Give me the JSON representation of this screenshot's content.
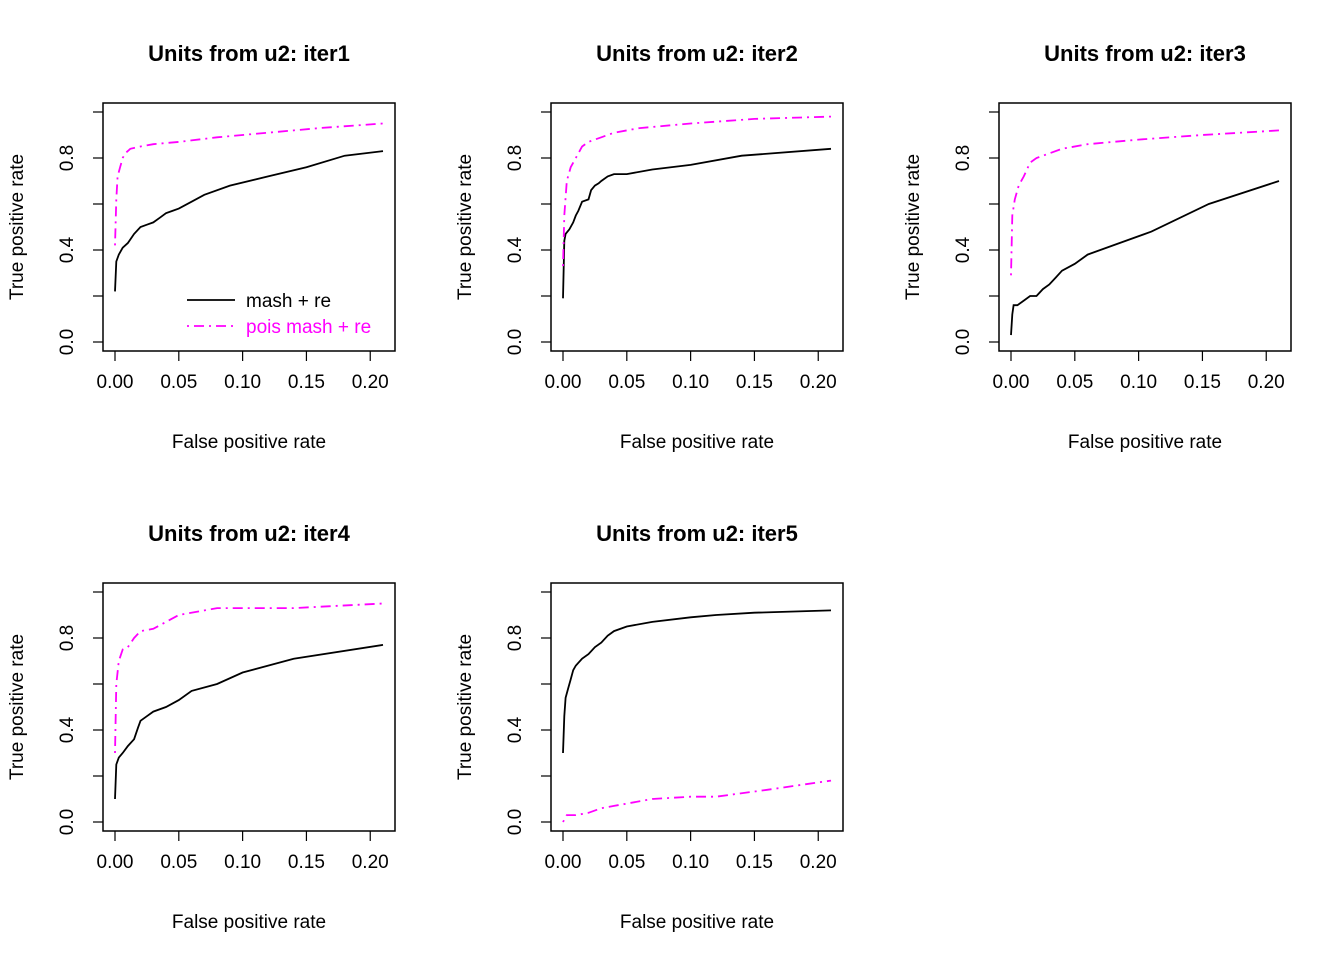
{
  "colors": {
    "series_a": "#000000",
    "series_b": "#FF00FF",
    "background": "#FFFFFF"
  },
  "legend": {
    "placement": "bottom-right of first panel",
    "entries": [
      {
        "label": "mash + re",
        "color": "#000000",
        "dash": "solid"
      },
      {
        "label": "pois mash + re",
        "color": "#FF00FF",
        "dash": "dotdash"
      }
    ]
  },
  "chart_data": [
    {
      "type": "line",
      "title": "Units from u2: iter1",
      "xlabel": "False positive rate",
      "ylabel": "True positive rate",
      "xlim": [
        0,
        0.21
      ],
      "ylim": [
        0,
        1.0
      ],
      "xticks": [
        "0.00",
        "0.05",
        "0.10",
        "0.15",
        "0.20"
      ],
      "yticks": [
        "0.0",
        "0.4",
        "0.8"
      ],
      "grid": false,
      "has_legend": true,
      "series": [
        {
          "name": "mash + re",
          "x": [
            0,
            0.001,
            0.003,
            0.006,
            0.01,
            0.015,
            0.02,
            0.025,
            0.03,
            0.035,
            0.04,
            0.045,
            0.05,
            0.06,
            0.07,
            0.09,
            0.12,
            0.15,
            0.18,
            0.21
          ],
          "y": [
            0.22,
            0.35,
            0.38,
            0.41,
            0.43,
            0.47,
            0.5,
            0.51,
            0.52,
            0.54,
            0.56,
            0.57,
            0.58,
            0.61,
            0.64,
            0.68,
            0.72,
            0.76,
            0.81,
            0.83
          ]
        },
        {
          "name": "pois mash + re",
          "x": [
            0,
            0.001,
            0.002,
            0.004,
            0.006,
            0.008,
            0.012,
            0.02,
            0.03,
            0.05,
            0.08,
            0.12,
            0.16,
            0.21
          ],
          "y": [
            0.42,
            0.62,
            0.72,
            0.76,
            0.8,
            0.82,
            0.84,
            0.85,
            0.86,
            0.87,
            0.89,
            0.91,
            0.93,
            0.95
          ]
        }
      ]
    },
    {
      "type": "line",
      "title": "Units from u2: iter2",
      "xlabel": "False positive rate",
      "ylabel": "True positive rate",
      "xlim": [
        0,
        0.21
      ],
      "ylim": [
        0,
        1.0
      ],
      "xticks": [
        "0.00",
        "0.05",
        "0.10",
        "0.15",
        "0.20"
      ],
      "yticks": [
        "0.0",
        "0.4",
        "0.8"
      ],
      "grid": false,
      "has_legend": false,
      "series": [
        {
          "name": "mash + re",
          "x": [
            0,
            0.001,
            0.002,
            0.005,
            0.008,
            0.01,
            0.012,
            0.015,
            0.02,
            0.022,
            0.025,
            0.028,
            0.03,
            0.035,
            0.04,
            0.05,
            0.07,
            0.1,
            0.14,
            0.21
          ],
          "y": [
            0.19,
            0.44,
            0.47,
            0.49,
            0.52,
            0.55,
            0.57,
            0.61,
            0.62,
            0.66,
            0.68,
            0.69,
            0.7,
            0.72,
            0.73,
            0.73,
            0.75,
            0.77,
            0.81,
            0.84
          ]
        },
        {
          "name": "pois mash + re",
          "x": [
            0,
            0.001,
            0.003,
            0.006,
            0.01,
            0.015,
            0.02,
            0.03,
            0.04,
            0.06,
            0.1,
            0.15,
            0.21
          ],
          "y": [
            0.33,
            0.55,
            0.7,
            0.76,
            0.8,
            0.85,
            0.87,
            0.89,
            0.91,
            0.93,
            0.95,
            0.97,
            0.98
          ]
        }
      ]
    },
    {
      "type": "line",
      "title": "Units from u2: iter3",
      "xlabel": "False positive rate",
      "ylabel": "True positive rate",
      "xlim": [
        0,
        0.21
      ],
      "ylim": [
        0,
        1.0
      ],
      "xticks": [
        "0.00",
        "0.05",
        "0.10",
        "0.15",
        "0.20"
      ],
      "yticks": [
        "0.0",
        "0.4",
        "0.8"
      ],
      "grid": false,
      "has_legend": false,
      "series": [
        {
          "name": "mash + re",
          "x": [
            0,
            0.001,
            0.002,
            0.005,
            0.01,
            0.015,
            0.02,
            0.025,
            0.03,
            0.035,
            0.04,
            0.05,
            0.06,
            0.08,
            0.11,
            0.155,
            0.21
          ],
          "y": [
            0.03,
            0.12,
            0.16,
            0.16,
            0.18,
            0.2,
            0.2,
            0.23,
            0.25,
            0.28,
            0.31,
            0.34,
            0.38,
            0.42,
            0.48,
            0.6,
            0.7
          ]
        },
        {
          "name": "pois mash + re",
          "x": [
            0,
            0.001,
            0.003,
            0.006,
            0.01,
            0.015,
            0.02,
            0.03,
            0.04,
            0.06,
            0.1,
            0.15,
            0.21
          ],
          "y": [
            0.29,
            0.55,
            0.62,
            0.68,
            0.72,
            0.78,
            0.8,
            0.82,
            0.84,
            0.86,
            0.88,
            0.9,
            0.92
          ]
        }
      ]
    },
    {
      "type": "line",
      "title": "Units from u2: iter4",
      "xlabel": "False positive rate",
      "ylabel": "True positive rate",
      "xlim": [
        0,
        0.21
      ],
      "ylim": [
        0,
        1.0
      ],
      "xticks": [
        "0.00",
        "0.05",
        "0.10",
        "0.15",
        "0.20"
      ],
      "yticks": [
        "0.0",
        "0.4",
        "0.8"
      ],
      "grid": false,
      "has_legend": false,
      "series": [
        {
          "name": "mash + re",
          "x": [
            0,
            0.001,
            0.003,
            0.006,
            0.01,
            0.015,
            0.018,
            0.02,
            0.025,
            0.03,
            0.04,
            0.05,
            0.06,
            0.08,
            0.1,
            0.14,
            0.21
          ],
          "y": [
            0.1,
            0.25,
            0.28,
            0.3,
            0.33,
            0.36,
            0.41,
            0.44,
            0.46,
            0.48,
            0.5,
            0.53,
            0.57,
            0.6,
            0.65,
            0.71,
            0.77
          ]
        },
        {
          "name": "pois mash + re",
          "x": [
            0,
            0.001,
            0.003,
            0.006,
            0.01,
            0.015,
            0.02,
            0.03,
            0.05,
            0.08,
            0.14,
            0.21
          ],
          "y": [
            0.3,
            0.6,
            0.7,
            0.75,
            0.76,
            0.8,
            0.83,
            0.84,
            0.9,
            0.93,
            0.93,
            0.95
          ]
        }
      ]
    },
    {
      "type": "line",
      "title": "Units from u2: iter5",
      "xlabel": "False positive rate",
      "ylabel": "True positive rate",
      "xlim": [
        0,
        0.21
      ],
      "ylim": [
        0,
        1.0
      ],
      "xticks": [
        "0.00",
        "0.05",
        "0.10",
        "0.15",
        "0.20"
      ],
      "yticks": [
        "0.0",
        "0.4",
        "0.8"
      ],
      "grid": false,
      "has_legend": false,
      "series": [
        {
          "name": "mash + re",
          "x": [
            0,
            0.001,
            0.002,
            0.004,
            0.006,
            0.008,
            0.01,
            0.015,
            0.02,
            0.025,
            0.03,
            0.035,
            0.04,
            0.05,
            0.07,
            0.1,
            0.12,
            0.15,
            0.21
          ],
          "y": [
            0.3,
            0.46,
            0.54,
            0.58,
            0.62,
            0.66,
            0.68,
            0.71,
            0.73,
            0.76,
            0.78,
            0.81,
            0.83,
            0.85,
            0.87,
            0.89,
            0.9,
            0.91,
            0.92
          ]
        },
        {
          "name": "pois mash + re",
          "x": [
            0,
            0.003,
            0.01,
            0.02,
            0.03,
            0.04,
            0.05,
            0.07,
            0.1,
            0.12,
            0.16,
            0.21
          ],
          "y": [
            0.0,
            0.03,
            0.03,
            0.04,
            0.06,
            0.07,
            0.08,
            0.1,
            0.11,
            0.11,
            0.14,
            0.18
          ]
        }
      ]
    }
  ]
}
